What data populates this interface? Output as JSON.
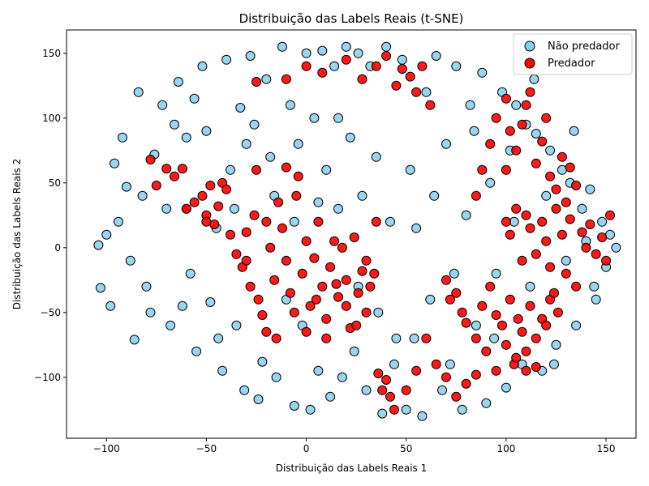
{
  "chart_data": {
    "type": "scatter",
    "title": "Distribuição das Labels Reais (t-SNE)",
    "xlabel": "Distribuição das Labels Reais  1",
    "ylabel": "Distribuição das Labels Reais  2",
    "xlim": [
      -120,
      165
    ],
    "ylim": [
      -147,
      168
    ],
    "xticks": [
      -100,
      -50,
      0,
      50,
      100,
      150
    ],
    "yticks": [
      -100,
      -50,
      0,
      50,
      100,
      150
    ],
    "grid": false,
    "legend_position": "top-right",
    "series": [
      {
        "name": "Não predador",
        "color": "#87CEEB",
        "edge_color": "#000000",
        "points": [
          [
            -104,
            2
          ],
          [
            -103,
            -31
          ],
          [
            -100,
            10
          ],
          [
            -96,
            65
          ],
          [
            -92,
            85
          ],
          [
            -90,
            47
          ],
          [
            -86,
            -71
          ],
          [
            -84,
            120
          ],
          [
            -80,
            -30
          ],
          [
            -76,
            72
          ],
          [
            -72,
            110
          ],
          [
            -68,
            -60
          ],
          [
            -64,
            128
          ],
          [
            -60,
            85
          ],
          [
            -58,
            -20
          ],
          [
            -55,
            -80
          ],
          [
            -52,
            140
          ],
          [
            -50,
            90
          ],
          [
            -48,
            -42
          ],
          [
            -45,
            15
          ],
          [
            -42,
            -95
          ],
          [
            -40,
            145
          ],
          [
            -38,
            60
          ],
          [
            -35,
            -60
          ],
          [
            -33,
            108
          ],
          [
            -31,
            -110
          ],
          [
            -28,
            148
          ],
          [
            -26,
            95
          ],
          [
            -24,
            -117
          ],
          [
            -22,
            -88
          ],
          [
            -20,
            130
          ],
          [
            -18,
            70
          ],
          [
            -15,
            -100
          ],
          [
            -12,
            155
          ],
          [
            -10,
            -40
          ],
          [
            -8,
            110
          ],
          [
            -6,
            -122
          ],
          [
            -4,
            80
          ],
          [
            -2,
            -60
          ],
          [
            0,
            150
          ],
          [
            2,
            -125
          ],
          [
            4,
            100
          ],
          [
            6,
            -95
          ],
          [
            8,
            152
          ],
          [
            10,
            60
          ],
          [
            12,
            -115
          ],
          [
            14,
            140
          ],
          [
            16,
            30
          ],
          [
            18,
            -100
          ],
          [
            20,
            155
          ],
          [
            22,
            85
          ],
          [
            24,
            -80
          ],
          [
            26,
            150
          ],
          [
            28,
            40
          ],
          [
            30,
            -110
          ],
          [
            32,
            140
          ],
          [
            35,
            70
          ],
          [
            38,
            -128
          ],
          [
            40,
            155
          ],
          [
            42,
            20
          ],
          [
            45,
            -70
          ],
          [
            48,
            145
          ],
          [
            50,
            -125
          ],
          [
            52,
            60
          ],
          [
            55,
            15
          ],
          [
            58,
            -130
          ],
          [
            60,
            120
          ],
          [
            62,
            -40
          ],
          [
            65,
            148
          ],
          [
            68,
            -110
          ],
          [
            70,
            80
          ],
          [
            72,
            -90
          ],
          [
            75,
            140
          ],
          [
            78,
            -125
          ],
          [
            80,
            25
          ],
          [
            82,
            110
          ],
          [
            85,
            -60
          ],
          [
            88,
            135
          ],
          [
            90,
            -120
          ],
          [
            92,
            50
          ],
          [
            95,
            -20
          ],
          [
            98,
            120
          ],
          [
            100,
            -108
          ],
          [
            102,
            75
          ],
          [
            105,
            110
          ],
          [
            108,
            -90
          ],
          [
            110,
            95
          ],
          [
            112,
            -30
          ],
          [
            115,
            88
          ],
          [
            118,
            -95
          ],
          [
            120,
            40
          ],
          [
            122,
            75
          ],
          [
            125,
            -75
          ],
          [
            128,
            60
          ],
          [
            130,
            -10
          ],
          [
            132,
            50
          ],
          [
            135,
            -60
          ],
          [
            138,
            30
          ],
          [
            140,
            5
          ],
          [
            142,
            45
          ],
          [
            145,
            -40
          ],
          [
            148,
            20
          ],
          [
            150,
            -15
          ],
          [
            152,
            10
          ],
          [
            155,
            0
          ],
          [
            -98,
            -45
          ],
          [
            -94,
            20
          ],
          [
            -88,
            -10
          ],
          [
            -82,
            40
          ],
          [
            -78,
            -50
          ],
          [
            -70,
            30
          ],
          [
            -66,
            95
          ],
          [
            -62,
            -45
          ],
          [
            -56,
            115
          ],
          [
            -44,
            -70
          ],
          [
            -36,
            30
          ],
          [
            -30,
            80
          ],
          [
            -16,
            40
          ],
          [
            -6,
            20
          ],
          [
            6,
            35
          ],
          [
            16,
            100
          ],
          [
            26,
            -30
          ],
          [
            36,
            -50
          ],
          [
            44,
            -90
          ],
          [
            54,
            -70
          ],
          [
            64,
            40
          ],
          [
            74,
            -20
          ],
          [
            84,
            90
          ],
          [
            94,
            -70
          ],
          [
            104,
            20
          ],
          [
            114,
            130
          ],
          [
            124,
            -90
          ],
          [
            134,
            90
          ],
          [
            144,
            -30
          ]
        ]
      },
      {
        "name": "Predador",
        "color": "#FF0000",
        "edge_color": "#000000",
        "points": [
          [
            -78,
            68
          ],
          [
            -75,
            48
          ],
          [
            -70,
            61
          ],
          [
            -66,
            55
          ],
          [
            -62,
            61
          ],
          [
            -60,
            30
          ],
          [
            -56,
            35
          ],
          [
            -52,
            40
          ],
          [
            -50,
            25
          ],
          [
            -48,
            48
          ],
          [
            -46,
            18
          ],
          [
            -44,
            32
          ],
          [
            -42,
            50
          ],
          [
            -38,
            10
          ],
          [
            -35,
            -5
          ],
          [
            -32,
            -15
          ],
          [
            -30,
            12
          ],
          [
            -28,
            -30
          ],
          [
            -26,
            25
          ],
          [
            -24,
            -40
          ],
          [
            -22,
            -52
          ],
          [
            -20,
            -65
          ],
          [
            -18,
            0
          ],
          [
            -16,
            -25
          ],
          [
            -14,
            35
          ],
          [
            -12,
            15
          ],
          [
            -10,
            -10
          ],
          [
            -8,
            -35
          ],
          [
            -6,
            -50
          ],
          [
            -4,
            55
          ],
          [
            -2,
            -20
          ],
          [
            0,
            5
          ],
          [
            2,
            -45
          ],
          [
            4,
            -8
          ],
          [
            6,
            20
          ],
          [
            8,
            -30
          ],
          [
            10,
            -55
          ],
          [
            12,
            -15
          ],
          [
            14,
            5
          ],
          [
            16,
            -38
          ],
          [
            18,
            0
          ],
          [
            20,
            -25
          ],
          [
            22,
            -62
          ],
          [
            24,
            8
          ],
          [
            26,
            -35
          ],
          [
            28,
            -18
          ],
          [
            30,
            -10
          ],
          [
            32,
            -30
          ],
          [
            34,
            -20
          ],
          [
            36,
            -97
          ],
          [
            38,
            -110
          ],
          [
            40,
            -102
          ],
          [
            42,
            -115
          ],
          [
            44,
            -125
          ],
          [
            -60,
            30
          ],
          [
            -50,
            20
          ],
          [
            -40,
            45
          ],
          [
            -30,
            -10
          ],
          [
            -25,
            60
          ],
          [
            -20,
            20
          ],
          [
            -15,
            -70
          ],
          [
            -10,
            62
          ],
          [
            -5,
            40
          ],
          [
            0,
            -65
          ],
          [
            5,
            -40
          ],
          [
            10,
            -70
          ],
          [
            15,
            -28
          ],
          [
            20,
            -45
          ],
          [
            25,
            -60
          ],
          [
            30,
            -50
          ],
          [
            35,
            20
          ],
          [
            35,
            140
          ],
          [
            40,
            148
          ],
          [
            45,
            125
          ],
          [
            48,
            138
          ],
          [
            52,
            132
          ],
          [
            55,
            120
          ],
          [
            58,
            140
          ],
          [
            62,
            110
          ],
          [
            -10,
            130
          ],
          [
            0,
            140
          ],
          [
            8,
            135
          ],
          [
            20,
            145
          ],
          [
            28,
            130
          ],
          [
            -25,
            128
          ],
          [
            70,
            -25
          ],
          [
            72,
            -40
          ],
          [
            75,
            -35
          ],
          [
            78,
            -50
          ],
          [
            80,
            -58
          ],
          [
            85,
            -70
          ],
          [
            88,
            -45
          ],
          [
            92,
            -30
          ],
          [
            95,
            -52
          ],
          [
            98,
            -60
          ],
          [
            100,
            -75
          ],
          [
            102,
            -40
          ],
          [
            104,
            -90
          ],
          [
            106,
            -55
          ],
          [
            108,
            -65
          ],
          [
            110,
            -80
          ],
          [
            112,
            -45
          ],
          [
            115,
            -70
          ],
          [
            118,
            -55
          ],
          [
            120,
            -60
          ],
          [
            122,
            -40
          ],
          [
            124,
            -35
          ],
          [
            126,
            -50
          ],
          [
            100,
            20
          ],
          [
            102,
            10
          ],
          [
            105,
            30
          ],
          [
            108,
            -10
          ],
          [
            110,
            25
          ],
          [
            112,
            15
          ],
          [
            115,
            -5
          ],
          [
            118,
            20
          ],
          [
            120,
            5
          ],
          [
            122,
            -15
          ],
          [
            125,
            30
          ],
          [
            128,
            10
          ],
          [
            130,
            -20
          ],
          [
            132,
            22
          ],
          [
            135,
            -30
          ],
          [
            138,
            12
          ],
          [
            140,
            0
          ],
          [
            142,
            18
          ],
          [
            145,
            -5
          ],
          [
            148,
            8
          ],
          [
            150,
            -10
          ],
          [
            152,
            25
          ],
          [
            100,
            60
          ],
          [
            105,
            75
          ],
          [
            108,
            95
          ],
          [
            110,
            110
          ],
          [
            112,
            120
          ],
          [
            115,
            65
          ],
          [
            118,
            82
          ],
          [
            120,
            100
          ],
          [
            122,
            55
          ],
          [
            125,
            45
          ],
          [
            128,
            70
          ],
          [
            130,
            35
          ],
          [
            132,
            62
          ],
          [
            135,
            48
          ],
          [
            100,
            115
          ],
          [
            102,
            90
          ],
          [
            95,
            100
          ],
          [
            92,
            80
          ],
          [
            88,
            60
          ],
          [
            85,
            40
          ],
          [
            60,
            -70
          ],
          [
            65,
            -90
          ],
          [
            55,
            -95
          ],
          [
            70,
            -100
          ],
          [
            50,
            -110
          ],
          [
            75,
            -115
          ],
          [
            80,
            -105
          ],
          [
            95,
            -95
          ],
          [
            105,
            -85
          ],
          [
            85,
            -98
          ],
          [
            90,
            -80
          ],
          [
            110,
            -95
          ],
          [
            115,
            -92
          ]
        ]
      }
    ]
  }
}
